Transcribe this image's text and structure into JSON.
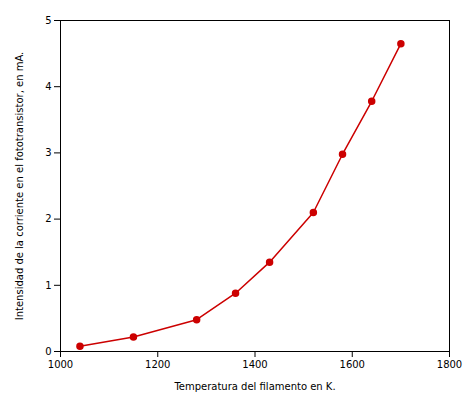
{
  "chart_data": {
    "type": "line",
    "xlabel": "Temperatura del filamento en K.",
    "ylabel": "Intensidad de la corriente en el fototransistor, en mA.",
    "x": [
      1040,
      1150,
      1280,
      1360,
      1430,
      1520,
      1580,
      1640,
      1700
    ],
    "values": [
      0.08,
      0.22,
      0.48,
      0.88,
      1.35,
      2.1,
      2.98,
      3.78,
      4.65
    ],
    "color": "#cc0000",
    "marker": "circle",
    "xlim": [
      1000,
      1800
    ],
    "ylim": [
      0,
      5
    ],
    "xticks": [
      1000,
      1200,
      1400,
      1600,
      1800
    ],
    "yticks": [
      0,
      1,
      2,
      3,
      4,
      5
    ]
  }
}
